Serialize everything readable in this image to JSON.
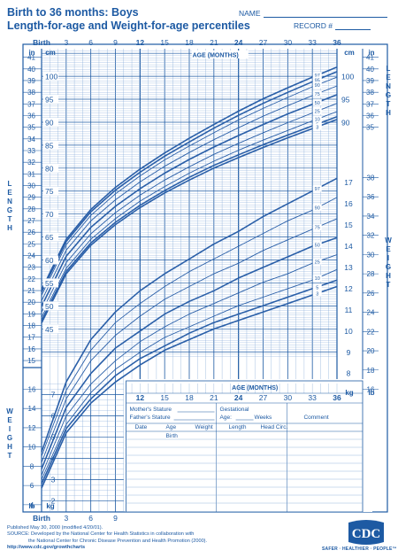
{
  "header": {
    "title_line1": "Birth to 36 months: Boys",
    "title_line2": "Length-for-age and Weight-for-age percentiles",
    "name_label": "NAME",
    "record_label": "RECORD #"
  },
  "chart_data": {
    "type": "line",
    "x_label": "AGE (MONTHS)",
    "x_ticks": [
      "Birth",
      "3",
      "6",
      "9",
      "12",
      "15",
      "18",
      "21",
      "24",
      "27",
      "30",
      "33",
      "36"
    ],
    "x_range": [
      0,
      36
    ],
    "length_panel": {
      "axis_label": "LENGTH",
      "cm_unit": "cm",
      "in_unit": "in",
      "cm_ticks_left": [
        "45",
        "50",
        "55",
        "60",
        "65",
        "70",
        "75",
        "80",
        "85",
        "90",
        "95",
        "100"
      ],
      "cm_ticks_right": [
        "90",
        "95",
        "100"
      ],
      "in_ticks_left": [
        "15",
        "16",
        "17",
        "18",
        "19",
        "20",
        "21",
        "22",
        "23",
        "24",
        "25",
        "26",
        "27",
        "28",
        "29",
        "30",
        "31",
        "32",
        "33",
        "34",
        "35",
        "36",
        "37",
        "38",
        "39",
        "40",
        "41"
      ],
      "in_ticks_right": [
        "35",
        "36",
        "37",
        "38",
        "39",
        "40",
        "41"
      ],
      "y_range_cm": [
        38.5,
        106
      ],
      "series": [
        {
          "name": "97",
          "x": [
            0,
            3,
            6,
            9,
            12,
            15,
            18,
            21,
            24,
            27,
            30,
            33,
            36
          ],
          "y": [
            53.5,
            64.5,
            71.0,
            75.8,
            79.8,
            83.3,
            86.5,
            89.5,
            92.4,
            95.1,
            97.5,
            99.8,
            102.0
          ]
        },
        {
          "name": "95",
          "x": [
            0,
            3,
            6,
            9,
            12,
            15,
            18,
            21,
            24,
            27,
            30,
            33,
            36
          ],
          "y": [
            53.0,
            64.0,
            70.5,
            75.2,
            79.1,
            82.6,
            85.7,
            88.7,
            91.5,
            94.1,
            96.5,
            98.8,
            101.0
          ]
        },
        {
          "name": "90",
          "x": [
            0,
            3,
            6,
            9,
            12,
            15,
            18,
            21,
            24,
            27,
            30,
            33,
            36
          ],
          "y": [
            52.3,
            63.3,
            69.7,
            74.4,
            78.3,
            81.8,
            84.8,
            87.7,
            90.5,
            93.0,
            95.4,
            97.7,
            99.8
          ]
        },
        {
          "name": "75",
          "x": [
            0,
            3,
            6,
            9,
            12,
            15,
            18,
            21,
            24,
            27,
            30,
            33,
            36
          ],
          "y": [
            51.1,
            62.1,
            68.5,
            73.1,
            77.0,
            80.4,
            83.4,
            86.2,
            88.8,
            91.3,
            93.6,
            95.8,
            97.9
          ]
        },
        {
          "name": "50",
          "x": [
            0,
            3,
            6,
            9,
            12,
            15,
            18,
            21,
            24,
            27,
            30,
            33,
            36
          ],
          "y": [
            49.9,
            60.8,
            67.1,
            71.7,
            75.5,
            78.9,
            81.9,
            84.6,
            87.1,
            89.5,
            91.8,
            93.9,
            96.0
          ]
        },
        {
          "name": "25",
          "x": [
            0,
            3,
            6,
            9,
            12,
            15,
            18,
            21,
            24,
            27,
            30,
            33,
            36
          ],
          "y": [
            48.6,
            59.4,
            65.7,
            70.3,
            74.1,
            77.4,
            80.3,
            83.0,
            85.4,
            87.7,
            89.9,
            92.0,
            94.1
          ]
        },
        {
          "name": "10",
          "x": [
            0,
            3,
            6,
            9,
            12,
            15,
            18,
            21,
            24,
            27,
            30,
            33,
            36
          ],
          "y": [
            47.5,
            58.2,
            64.5,
            69.0,
            72.8,
            76.0,
            78.9,
            81.5,
            83.9,
            86.1,
            88.2,
            90.3,
            92.3
          ]
        },
        {
          "name": "5",
          "x": [
            0,
            3,
            6,
            9,
            12,
            15,
            18,
            21,
            24,
            27,
            30,
            33,
            36
          ],
          "y": [
            46.8,
            57.5,
            63.7,
            68.2,
            71.9,
            75.1,
            78.0,
            80.6,
            82.9,
            85.1,
            87.2,
            89.2,
            91.2
          ]
        },
        {
          "name": "3",
          "x": [
            0,
            3,
            6,
            9,
            12,
            15,
            18,
            21,
            24,
            27,
            30,
            33,
            36
          ],
          "y": [
            46.3,
            57.0,
            63.2,
            67.7,
            71.4,
            74.6,
            77.4,
            80.0,
            82.3,
            84.5,
            86.6,
            88.6,
            90.6
          ]
        }
      ]
    },
    "weight_panel": {
      "axis_label": "WEIGHT",
      "kg_unit": "kg",
      "lb_unit": "lb",
      "kg_ticks_left": [
        "2",
        "3",
        "4",
        "5",
        "6",
        "7"
      ],
      "lb_ticks_left": [
        "4",
        "6",
        "8",
        "10",
        "12",
        "14",
        "16"
      ],
      "kg_ticks_right": [
        "8",
        "9",
        "10",
        "11",
        "12",
        "13",
        "14",
        "15",
        "16",
        "17"
      ],
      "lb_ticks_right": [
        "16",
        "18",
        "20",
        "22",
        "24",
        "26",
        "28",
        "30",
        "32",
        "34",
        "36",
        "38"
      ],
      "y_range_kg": [
        1.6,
        18.3
      ],
      "series": [
        {
          "name": "97",
          "x": [
            0,
            3,
            6,
            9,
            12,
            15,
            18,
            21,
            24,
            27,
            30,
            33,
            36
          ],
          "y": [
            4.3,
            7.6,
            9.6,
            10.9,
            11.9,
            12.7,
            13.4,
            14.1,
            14.7,
            15.4,
            16.0,
            16.6,
            17.2
          ]
        },
        {
          "name": "90",
          "x": [
            0,
            3,
            6,
            9,
            12,
            15,
            18,
            21,
            24,
            27,
            30,
            33,
            36
          ],
          "y": [
            4.1,
            7.2,
            9.1,
            10.4,
            11.3,
            12.1,
            12.8,
            13.4,
            14.0,
            14.6,
            15.2,
            15.7,
            16.3
          ]
        },
        {
          "name": "75",
          "x": [
            0,
            3,
            6,
            9,
            12,
            15,
            18,
            21,
            24,
            27,
            30,
            33,
            36
          ],
          "y": [
            3.8,
            6.8,
            8.6,
            9.8,
            10.7,
            11.5,
            12.1,
            12.7,
            13.2,
            13.8,
            14.3,
            14.8,
            15.3
          ]
        },
        {
          "name": "50",
          "x": [
            0,
            3,
            6,
            9,
            12,
            15,
            18,
            21,
            24,
            27,
            30,
            33,
            36
          ],
          "y": [
            3.5,
            6.4,
            8.0,
            9.2,
            10.0,
            10.8,
            11.4,
            11.9,
            12.5,
            13.0,
            13.5,
            14.0,
            14.4
          ]
        },
        {
          "name": "25",
          "x": [
            0,
            3,
            6,
            9,
            12,
            15,
            18,
            21,
            24,
            27,
            30,
            33,
            36
          ],
          "y": [
            3.2,
            6.0,
            7.5,
            8.6,
            9.5,
            10.2,
            10.8,
            11.3,
            11.8,
            12.3,
            12.7,
            13.2,
            13.6
          ]
        },
        {
          "name": "10",
          "x": [
            0,
            3,
            6,
            9,
            12,
            15,
            18,
            21,
            24,
            27,
            30,
            33,
            36
          ],
          "y": [
            3.0,
            5.6,
            7.1,
            8.2,
            9.0,
            9.7,
            10.2,
            10.7,
            11.2,
            11.6,
            12.0,
            12.4,
            12.9
          ]
        },
        {
          "name": "5",
          "x": [
            0,
            3,
            6,
            9,
            12,
            15,
            18,
            21,
            24,
            27,
            30,
            33,
            36
          ],
          "y": [
            2.8,
            5.4,
            6.8,
            7.9,
            8.7,
            9.3,
            9.9,
            10.4,
            10.8,
            11.2,
            11.6,
            12.0,
            12.4
          ]
        },
        {
          "name": "3",
          "x": [
            0,
            3,
            6,
            9,
            12,
            15,
            18,
            21,
            24,
            27,
            30,
            33,
            36
          ],
          "y": [
            2.6,
            5.2,
            6.6,
            7.6,
            8.4,
            9.1,
            9.6,
            10.1,
            10.5,
            10.9,
            11.3,
            11.7,
            12.1
          ]
        }
      ]
    }
  },
  "info_box": {
    "age_label": "AGE (MONTHS)",
    "age_ticks": [
      "12",
      "15",
      "18",
      "21",
      "24",
      "27",
      "30",
      "33",
      "36"
    ],
    "mothers_stature": "Mother's Stature",
    "fathers_stature": "Father's Stature",
    "gestational": "Gestational",
    "age": "Age:",
    "weeks": "Weeks",
    "comment": "Comment",
    "columns": [
      "Date",
      "Age",
      "Weight",
      "Length",
      "Head Circ."
    ],
    "first_row_age": "Birth",
    "unit_kg": "kg",
    "unit_lb": "lb"
  },
  "footer": {
    "published": "Published May 30, 2000 (modified 4/20/01).",
    "source": "SOURCE: Developed by the National Center for Health Statistics in collaboration with",
    "source2": "the National Center for Chronic Disease Prevention and Health Promotion (2000).",
    "url": "http://www.cdc.gov/growthcharts",
    "logo_text": "CDC",
    "tagline": "SAFER · HEALTHIER · PEOPLE™"
  },
  "colors": {
    "accent": "#1d5aa3",
    "grid_minor": "#7fa6d6",
    "curve": "#2a5fa8",
    "background": "#ffffff"
  }
}
